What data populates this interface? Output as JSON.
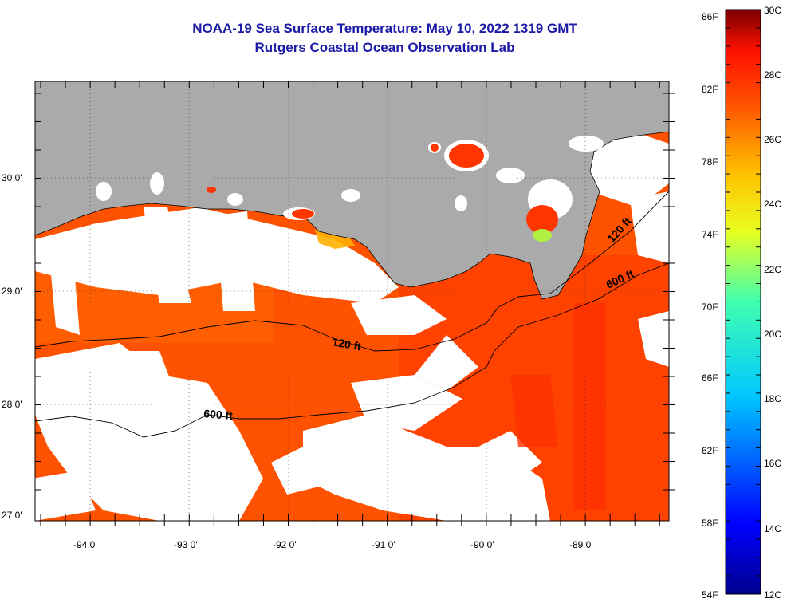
{
  "title": {
    "line1": "NOAA-19 Sea Surface Temperature:  May 10, 2022 1319 GMT",
    "line2": "Rutgers Coastal Ocean Observation Lab"
  },
  "map": {
    "lon_labels": [
      "-94 0'",
      "-93 0'",
      "-92 0'",
      "-91 0'",
      "-90 0'",
      "-89 0'"
    ],
    "lat_labels": [
      "30 0'",
      "29 0'",
      "28 0'",
      "27 0'"
    ],
    "contour_labels": [
      "120 ft",
      "600 ft",
      "120 ft",
      "600 ft"
    ],
    "colors": {
      "land": "#aaaaaa",
      "cloud": "#ffffff",
      "sst_warm": "#ff5000",
      "sst_hot": "#ff2a00",
      "sst_cool": "#ffa000"
    }
  },
  "colorbar": {
    "f_labels": [
      "86F",
      "82F",
      "78F",
      "74F",
      "70F",
      "66F",
      "62F",
      "58F",
      "54F"
    ],
    "c_labels": [
      "30C",
      "28C",
      "26C",
      "24C",
      "22C",
      "20C",
      "18C",
      "16C",
      "14C",
      "12C"
    ],
    "range_f": [
      54,
      86
    ],
    "range_c": [
      12,
      30
    ]
  }
}
